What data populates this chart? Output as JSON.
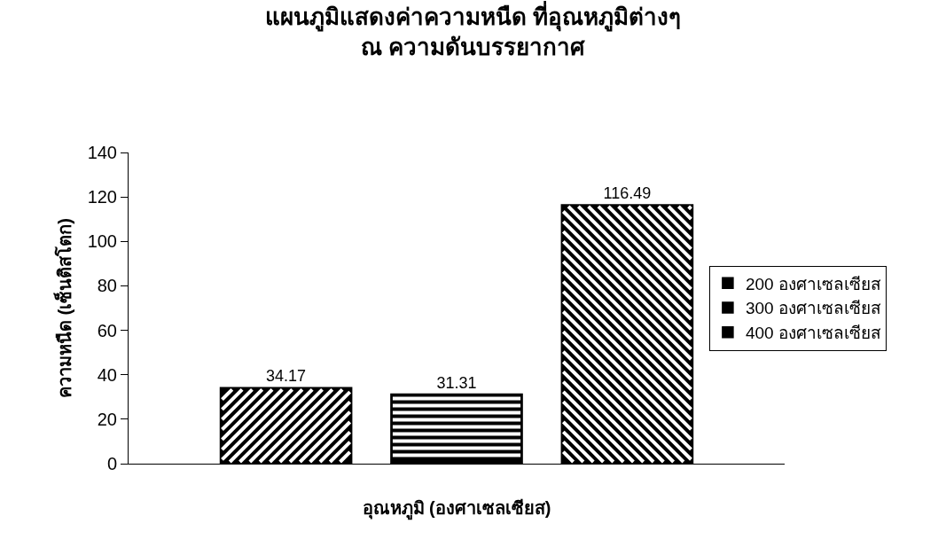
{
  "chart_data": {
    "type": "bar",
    "title": "แผนภูมิแสดงค่าความหนืด ที่อุณหภูมิต่างๆ\nณ ความดันบรรยากาศ",
    "xlabel": "อุณหภูมิ (องศาเซลเซียส)",
    "ylabel": "ความหนืด (เซ็นติสโตก)",
    "categories": [
      null
    ],
    "series": [
      {
        "name": "200 องศาเซลเซียส",
        "color": "#000000",
        "values": [
          34.17
        ]
      },
      {
        "name": "300 องศาเซลเซียส",
        "color": "#000000",
        "values": [
          31.31
        ]
      },
      {
        "name": "400 องศาเซลเซียส",
        "color": "#000000",
        "values": [
          116.49
        ]
      }
    ],
    "ylim": [
      0,
      140
    ],
    "yticks": [
      0,
      20,
      40,
      60,
      80,
      100,
      120,
      140
    ],
    "data_labels": true,
    "legend": "right",
    "grid": false
  }
}
